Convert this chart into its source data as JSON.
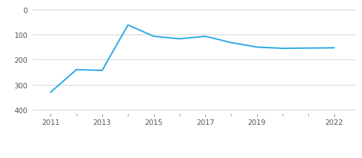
{
  "x": [
    2011,
    2012,
    2013,
    2014,
    2015,
    2016,
    2017,
    2018,
    2019,
    2020,
    2022
  ],
  "y": [
    330,
    240,
    243,
    62,
    107,
    117,
    107,
    132,
    150,
    155,
    153
  ],
  "line_color": "#29ABE2",
  "line_width": 1.5,
  "yticks": [
    0,
    100,
    200,
    300,
    400
  ],
  "xticks": [
    2011,
    2013,
    2015,
    2017,
    2019,
    2022
  ],
  "ylim": [
    415,
    -15
  ],
  "xlim": [
    2010.3,
    2022.8
  ],
  "grid_color": "#cccccc",
  "background_color": "#ffffff",
  "tick_color": "#555555",
  "font_size": 7.5
}
